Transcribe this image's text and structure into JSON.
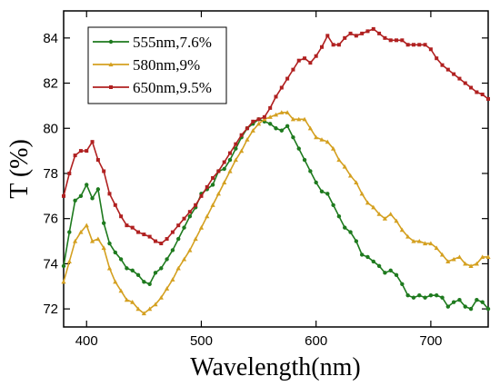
{
  "chart_data": {
    "type": "line",
    "title": "",
    "xlabel": "Wavelength(nm)",
    "ylabel": "T (%)",
    "xlim": [
      380,
      750
    ],
    "ylim": [
      71.2,
      85.2
    ],
    "xticks": [
      400,
      500,
      600,
      700
    ],
    "yticks": [
      72,
      74,
      76,
      78,
      80,
      82,
      84
    ],
    "grid": false,
    "legend_position": "top-left",
    "series": [
      {
        "name": "555nm,7.6%",
        "color": "#1e7a1e",
        "marker": "circle",
        "x": [
          380,
          385,
          390,
          395,
          400,
          405,
          410,
          415,
          420,
          425,
          430,
          435,
          440,
          445,
          450,
          455,
          460,
          465,
          470,
          475,
          480,
          485,
          490,
          495,
          500,
          505,
          510,
          515,
          520,
          525,
          530,
          535,
          540,
          545,
          550,
          555,
          560,
          565,
          570,
          575,
          580,
          585,
          590,
          595,
          600,
          605,
          610,
          615,
          620,
          625,
          630,
          635,
          640,
          645,
          650,
          655,
          660,
          665,
          670,
          675,
          680,
          685,
          690,
          695,
          700,
          705,
          710,
          715,
          720,
          725,
          730,
          735,
          740,
          745,
          750
        ],
        "y": [
          73.9,
          75.4,
          76.8,
          77.0,
          77.5,
          76.9,
          77.3,
          75.8,
          74.9,
          74.5,
          74.2,
          73.8,
          73.7,
          73.5,
          73.2,
          73.1,
          73.6,
          73.8,
          74.2,
          74.6,
          75.1,
          75.6,
          76.1,
          76.5,
          77.1,
          77.3,
          77.5,
          78.1,
          78.2,
          78.6,
          79.1,
          79.6,
          80.0,
          80.2,
          80.4,
          80.3,
          80.2,
          80.0,
          79.9,
          80.1,
          79.6,
          79.1,
          78.6,
          78.1,
          77.6,
          77.2,
          77.1,
          76.6,
          76.1,
          75.6,
          75.4,
          75.0,
          74.4,
          74.3,
          74.1,
          73.9,
          73.6,
          73.7,
          73.5,
          73.1,
          72.6,
          72.5,
          72.6,
          72.5,
          72.6,
          72.6,
          72.5,
          72.1,
          72.3,
          72.4,
          72.1,
          72.0,
          72.4,
          72.3,
          72.0
        ]
      },
      {
        "name": "580nm,9%",
        "color": "#d4a020",
        "marker": "triangle",
        "x": [
          380,
          385,
          390,
          395,
          400,
          405,
          410,
          415,
          420,
          425,
          430,
          435,
          440,
          445,
          450,
          455,
          460,
          465,
          470,
          475,
          480,
          485,
          490,
          495,
          500,
          505,
          510,
          515,
          520,
          525,
          530,
          535,
          540,
          545,
          550,
          555,
          560,
          565,
          570,
          575,
          580,
          585,
          590,
          595,
          600,
          605,
          610,
          615,
          620,
          625,
          630,
          635,
          640,
          645,
          650,
          655,
          660,
          665,
          670,
          675,
          680,
          685,
          690,
          695,
          700,
          705,
          710,
          715,
          720,
          725,
          730,
          735,
          740,
          745,
          750
        ],
        "y": [
          73.2,
          74.1,
          75.0,
          75.4,
          75.7,
          75.0,
          75.1,
          74.7,
          73.8,
          73.2,
          72.8,
          72.4,
          72.3,
          72.0,
          71.8,
          72.0,
          72.2,
          72.5,
          72.9,
          73.3,
          73.8,
          74.2,
          74.6,
          75.1,
          75.6,
          76.1,
          76.6,
          77.1,
          77.6,
          78.1,
          78.6,
          79.0,
          79.5,
          79.9,
          80.2,
          80.4,
          80.5,
          80.6,
          80.7,
          80.7,
          80.4,
          80.4,
          80.4,
          80.0,
          79.6,
          79.5,
          79.4,
          79.1,
          78.6,
          78.3,
          77.9,
          77.6,
          77.1,
          76.7,
          76.5,
          76.2,
          76.0,
          76.2,
          75.9,
          75.5,
          75.2,
          75.0,
          75.0,
          74.9,
          74.9,
          74.7,
          74.4,
          74.1,
          74.2,
          74.3,
          74.0,
          73.9,
          74.0,
          74.3,
          74.3
        ]
      },
      {
        "name": "650nm,9.5%",
        "color": "#b02020",
        "marker": "square",
        "x": [
          380,
          385,
          390,
          395,
          400,
          405,
          410,
          415,
          420,
          425,
          430,
          435,
          440,
          445,
          450,
          455,
          460,
          465,
          470,
          475,
          480,
          485,
          490,
          495,
          500,
          505,
          510,
          515,
          520,
          525,
          530,
          535,
          540,
          545,
          550,
          555,
          560,
          565,
          570,
          575,
          580,
          585,
          590,
          595,
          600,
          605,
          610,
          615,
          620,
          625,
          630,
          635,
          640,
          645,
          650,
          655,
          660,
          665,
          670,
          675,
          680,
          685,
          690,
          695,
          700,
          705,
          710,
          715,
          720,
          725,
          730,
          735,
          740,
          745,
          750
        ],
        "y": [
          77.0,
          78.0,
          78.8,
          79.0,
          79.0,
          79.4,
          78.6,
          78.1,
          77.1,
          76.6,
          76.1,
          75.7,
          75.6,
          75.4,
          75.3,
          75.2,
          75.0,
          74.9,
          75.1,
          75.4,
          75.7,
          76.0,
          76.3,
          76.6,
          77.0,
          77.4,
          77.8,
          78.1,
          78.5,
          78.9,
          79.3,
          79.7,
          80.0,
          80.3,
          80.4,
          80.5,
          80.9,
          81.4,
          81.8,
          82.2,
          82.6,
          83.0,
          83.1,
          82.9,
          83.2,
          83.6,
          84.1,
          83.7,
          83.7,
          84.0,
          84.2,
          84.1,
          84.2,
          84.3,
          84.4,
          84.2,
          84.0,
          83.9,
          83.9,
          83.9,
          83.7,
          83.7,
          83.7,
          83.7,
          83.5,
          83.1,
          82.8,
          82.6,
          82.4,
          82.2,
          82.0,
          81.8,
          81.6,
          81.5,
          81.3
        ]
      }
    ]
  }
}
